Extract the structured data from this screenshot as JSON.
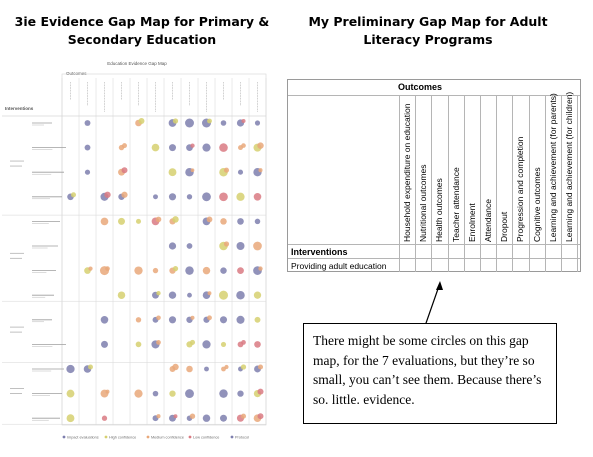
{
  "left_title": "3ie Evidence Gap Map for Primary & Secondary Education",
  "right_title": "My Preliminary Gap Map for Adult Literacy Programs",
  "evidence_map": {
    "caption": "Education Evidence Gap Map",
    "outcomes_label": "Outcomes",
    "interventions_label": "Interventions",
    "legend": [
      "Impact evaluations",
      "High confidence",
      "Medium confidence",
      "Low confidence",
      "Protocol"
    ],
    "colors": {
      "purple": "#7e7fae",
      "orange": "#e9a87a",
      "yellow": "#d6d070",
      "pink": "#d97a82",
      "grid": "#d6d6d6",
      "text": "#6e6e6e"
    }
  },
  "preliminary_map": {
    "outcomes_header": "Outcomes",
    "interventions_header": "Interventions",
    "columns": [
      "Household expenditure on education",
      "Nutritional outcomes",
      "Health outcomes",
      "Teacher attendance",
      "Enrolment",
      "Attendance",
      "Dropout",
      "Progression and completion",
      "Cognitive outcomes",
      "Learning and achievement (for parents)",
      "Learning and achievement (for children)"
    ],
    "rows": [
      "Providing adult education"
    ]
  },
  "callout": {
    "text": "There might be some circles on this gap map, for the 7 evaluations, but they’re so small, you can’t see them. Because there’s so. little. evidence."
  }
}
